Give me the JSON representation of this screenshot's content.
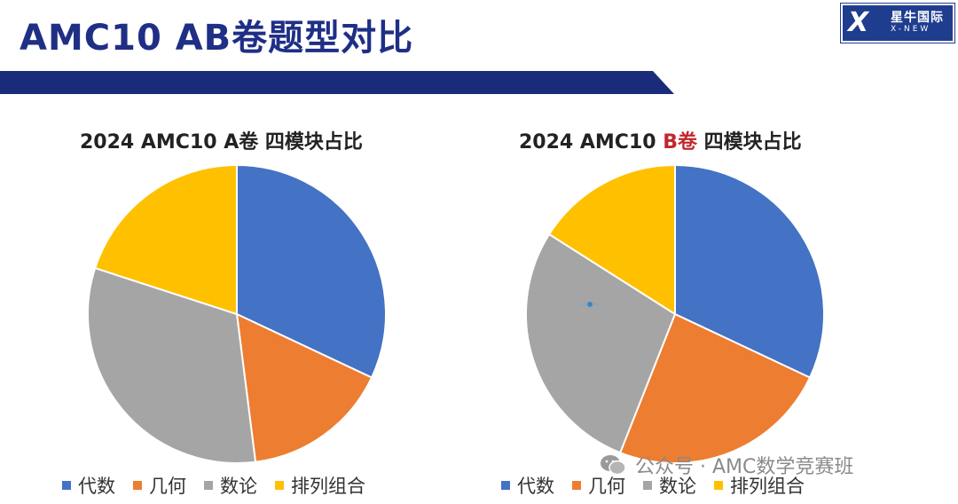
{
  "header": {
    "title": "AMC10 AB卷题型对比",
    "logo": {
      "text_cn": "星牛国际",
      "text_en": "X-NEW",
      "mark": "X"
    }
  },
  "charts_meta": [
    {
      "title_prefix": "2024 AMC10 ",
      "title_highlight": "A卷",
      "title_suffix": " 四模块占比",
      "highlight_color": "#222222"
    },
    {
      "title_prefix": "2024 AMC10 ",
      "title_highlight": "B卷",
      "title_suffix": " 四模块占比",
      "highlight_color": "#c0282d"
    }
  ],
  "legend": [
    {
      "label": "代数",
      "color": "#4472c4"
    },
    {
      "label": "几何",
      "color": "#ed7d31"
    },
    {
      "label": "数论",
      "color": "#a5a5a5"
    },
    {
      "label": "排列组合",
      "color": "#ffc000"
    }
  ],
  "watermark": {
    "text": "公众号 · AMC数学竞赛班",
    "icon": "wechat-icon"
  },
  "chart_data": [
    {
      "type": "pie",
      "title": "2024 AMC10 A卷 四模块占比",
      "categories": [
        "代数",
        "几何",
        "数论",
        "排列组合"
      ],
      "values": [
        32,
        16,
        32,
        20
      ],
      "colors": [
        "#4472c4",
        "#ed7d31",
        "#a5a5a5",
        "#ffc000"
      ],
      "legend_position": "bottom"
    },
    {
      "type": "pie",
      "title": "2024 AMC10 B卷 四模块占比",
      "categories": [
        "代数",
        "几何",
        "数论",
        "排列组合"
      ],
      "values": [
        32,
        24,
        28,
        16
      ],
      "colors": [
        "#4472c4",
        "#ed7d31",
        "#a5a5a5",
        "#ffc000"
      ],
      "legend_position": "bottom"
    }
  ]
}
